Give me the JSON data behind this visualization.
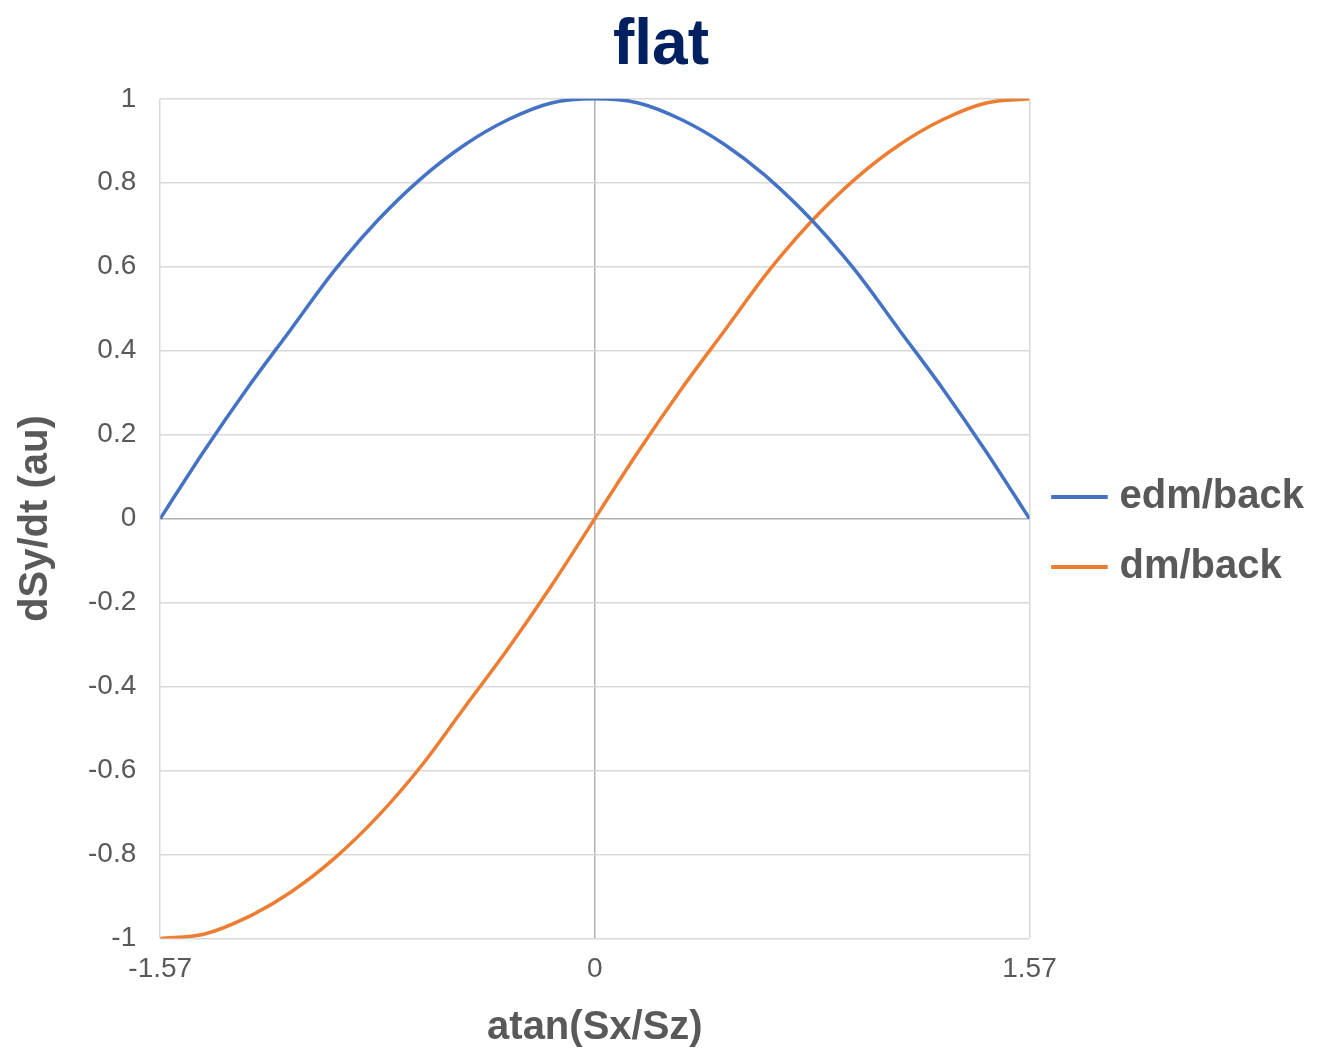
{
  "chart_data": {
    "type": "line",
    "title": "flat",
    "xlabel": "atan(Sx/Sz)",
    "ylabel": "dSy/dt (au)",
    "x": [
      -1.57,
      -1.413,
      -1.256,
      -1.099,
      -0.942,
      -0.785,
      -0.628,
      -0.471,
      -0.314,
      -0.157,
      0,
      0.157,
      0.314,
      0.471,
      0.628,
      0.785,
      0.942,
      1.099,
      1.256,
      1.413,
      1.57
    ],
    "series": [
      {
        "name": "edm/back",
        "color": "#4472c4",
        "values": [
          0,
          0.16,
          0.31,
          0.45,
          0.59,
          0.71,
          0.81,
          0.89,
          0.95,
          0.99,
          1,
          0.99,
          0.95,
          0.89,
          0.81,
          0.71,
          0.59,
          0.45,
          0.31,
          0.16,
          0
        ]
      },
      {
        "name": "dm/back",
        "color": "#ed7d31",
        "values": [
          -1,
          -0.99,
          -0.95,
          -0.89,
          -0.81,
          -0.71,
          -0.59,
          -0.45,
          -0.31,
          -0.16,
          0,
          0.16,
          0.31,
          0.45,
          0.59,
          0.71,
          0.81,
          0.89,
          0.95,
          0.99,
          1
        ]
      }
    ],
    "xlim": [
      -1.57,
      1.57
    ],
    "xticks": [
      -1.57,
      0,
      1.57
    ],
    "ylim": [
      -1,
      1
    ],
    "yticks": [
      -1,
      -0.8,
      -0.6,
      -0.4,
      -0.2,
      0,
      0.2,
      0.4,
      0.6,
      0.8,
      1
    ],
    "grid": true,
    "legend": "right",
    "marker": "none",
    "line_style": "solid"
  }
}
